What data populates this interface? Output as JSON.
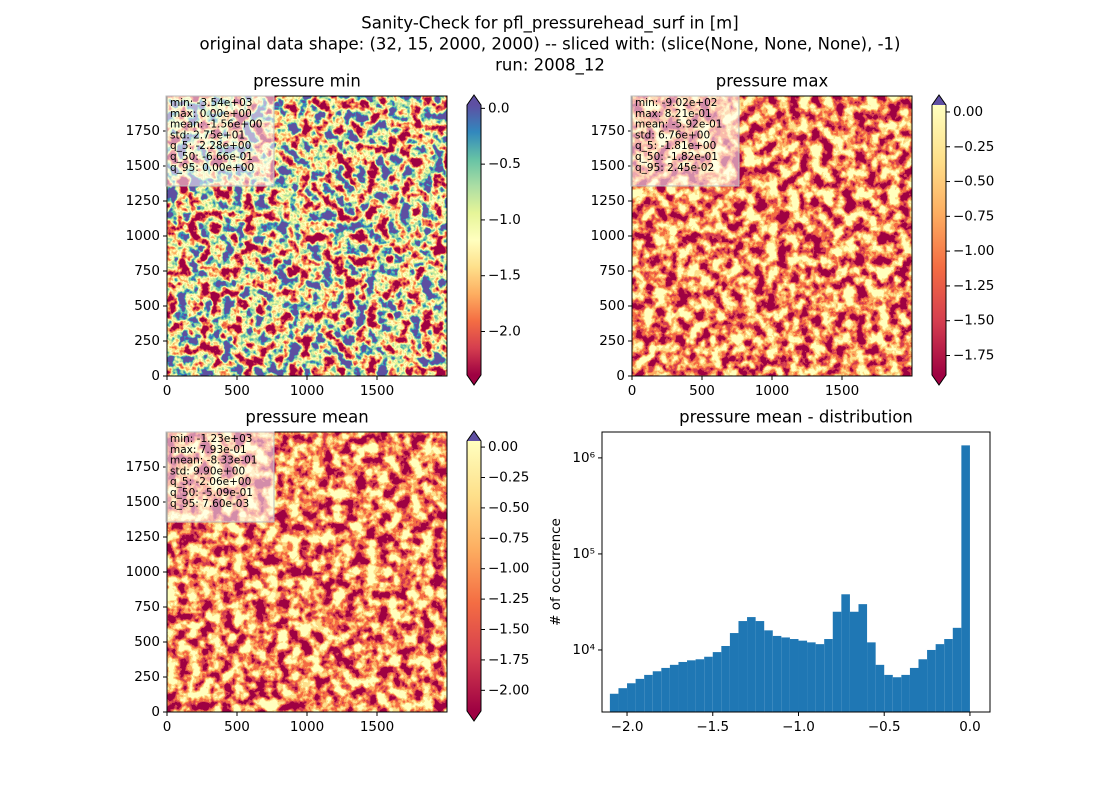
{
  "suptitle": [
    "Sanity-Check for pfl_pressurehead_surf in [m]",
    "original data shape: (32, 15, 2000, 2000) -- sliced with: (slice(None, None, None), -1)",
    "run: 2008_12"
  ],
  "chart_data": [
    {
      "type": "heatmap",
      "title": "pressure min",
      "xlim": [
        0,
        2000
      ],
      "ylim": [
        0,
        2000
      ],
      "xticks": [
        0,
        500,
        1000,
        1500
      ],
      "yticks": [
        0,
        250,
        500,
        750,
        1000,
        1250,
        1500,
        1750
      ],
      "clim": [
        -2.39,
        0.03
      ],
      "cticks": [
        {
          "value": 0,
          "label": "0.0"
        },
        {
          "value": -0.5,
          "label": "−0.5"
        },
        {
          "value": -1,
          "label": "−1.0"
        },
        {
          "value": -1.5,
          "label": "−1.5"
        },
        {
          "value": -2,
          "label": "−2.0"
        }
      ],
      "colormap": [
        "#9e0142",
        "#d53e4f",
        "#f46d43",
        "#fdae61",
        "#fee08b",
        "#ffffbf",
        "#e6f598",
        "#abdda4",
        "#66c2a5",
        "#3288bd",
        "#5e4fa2"
      ],
      "extend_colors": {
        "over": "#5e4fa2",
        "under": "#9e0142"
      },
      "stats": [
        "min: -3.54e+03",
        "max: 0.00e+00",
        "mean: -1.56e+00",
        "std: 2.75e+01",
        "q_5: -2.28e+00",
        "q_50: -6.66e-01",
        "q_95: 0.00e+00"
      ]
    },
    {
      "type": "heatmap",
      "title": "pressure max",
      "xlim": [
        0,
        2000
      ],
      "ylim": [
        0,
        2000
      ],
      "xticks": [
        0,
        500,
        1000,
        1500
      ],
      "yticks": [
        0,
        250,
        500,
        750,
        1000,
        1250,
        1500,
        1750
      ],
      "clim": [
        -1.89,
        0.05
      ],
      "cticks": [
        {
          "value": 0,
          "label": "0.00"
        },
        {
          "value": -0.25,
          "label": "−0.25"
        },
        {
          "value": -0.5,
          "label": "−0.50"
        },
        {
          "value": -0.75,
          "label": "−0.75"
        },
        {
          "value": -1,
          "label": "−1.00"
        },
        {
          "value": -1.25,
          "label": "−1.25"
        },
        {
          "value": -1.5,
          "label": "−1.50"
        },
        {
          "value": -1.75,
          "label": "−1.75"
        }
      ],
      "colormap": [
        "#9e0142",
        "#d53e4f",
        "#f46d43",
        "#fdae61",
        "#fee08b",
        "#ffffbf"
      ],
      "extend_colors": {
        "over": "#5e4fa2",
        "under": "#9e0142"
      },
      "stats": [
        "min: -9.02e+02",
        "max: 8.21e-01",
        "mean: -5.92e-01",
        "std: 6.76e+00",
        "q_5: -1.81e+00",
        "q_50: -1.82e-01",
        "q_95: 2.45e-02"
      ]
    },
    {
      "type": "heatmap",
      "title": "pressure mean",
      "xlim": [
        0,
        2000
      ],
      "ylim": [
        0,
        2000
      ],
      "xticks": [
        0,
        500,
        1000,
        1500
      ],
      "yticks": [
        0,
        250,
        500,
        750,
        1000,
        1250,
        1500,
        1750
      ],
      "clim": [
        -2.17,
        0.05
      ],
      "cticks": [
        {
          "value": 0,
          "label": "0.00"
        },
        {
          "value": -0.25,
          "label": "−0.25"
        },
        {
          "value": -0.5,
          "label": "−0.50"
        },
        {
          "value": -0.75,
          "label": "−0.75"
        },
        {
          "value": -1,
          "label": "−1.00"
        },
        {
          "value": -1.25,
          "label": "−1.25"
        },
        {
          "value": -1.5,
          "label": "−1.50"
        },
        {
          "value": -1.75,
          "label": "−1.75"
        },
        {
          "value": -2,
          "label": "−2.00"
        }
      ],
      "colormap": [
        "#9e0142",
        "#d53e4f",
        "#f46d43",
        "#fdae61",
        "#fee08b",
        "#ffffbf"
      ],
      "extend_colors": {
        "over": "#5e4fa2",
        "under": "#9e0142"
      },
      "stats": [
        "min: -1.23e+03",
        "max: 7.93e-01",
        "mean: -8.33e-01",
        "std: 9.90e+00",
        "q_5: -2.06e+00",
        "q_50: -5.09e-01",
        "q_95: 7.60e-03"
      ]
    },
    {
      "type": "histogram",
      "title": "pressure mean - distribution",
      "y_label": "# of occurrence",
      "color": "#1f77b4",
      "log_y": true,
      "xlim": [
        -2.146,
        0.117
      ],
      "ylim": [
        2260,
        1860000
      ],
      "xticks": [
        {
          "value": -2,
          "label": "−2.0"
        },
        {
          "value": -1.5,
          "label": "−1.5"
        },
        {
          "value": -1,
          "label": "−1.0"
        },
        {
          "value": -0.5,
          "label": "−0.5"
        },
        {
          "value": 0,
          "label": "0.0"
        }
      ],
      "yticks": [
        {
          "value": 10000,
          "label": "10⁴"
        },
        {
          "value": 100000,
          "label": "10⁵"
        },
        {
          "value": 1000000,
          "label": "10⁶"
        }
      ],
      "bins": [
        -2.1,
        -2.05,
        -2.0,
        -1.95,
        -1.9,
        -1.85,
        -1.8,
        -1.75,
        -1.7,
        -1.65,
        -1.6,
        -1.55,
        -1.5,
        -1.45,
        -1.4,
        -1.35,
        -1.3,
        -1.25,
        -1.2,
        -1.15,
        -1.1,
        -1.05,
        -1.0,
        -0.95,
        -0.9,
        -0.85,
        -0.8,
        -0.75,
        -0.7,
        -0.65,
        -0.6,
        -0.55,
        -0.5,
        -0.45,
        -0.4,
        -0.35,
        -0.3,
        -0.25,
        -0.2,
        -0.15,
        -0.1,
        -0.05,
        0.0
      ],
      "counts": [
        3500,
        4000,
        4500,
        5000,
        5500,
        6000,
        6500,
        7000,
        7500,
        7800,
        8000,
        8500,
        9500,
        11000,
        15000,
        20000,
        22000,
        20000,
        16000,
        14000,
        13500,
        13000,
        12500,
        12000,
        11500,
        13000,
        25000,
        38000,
        25000,
        30000,
        12000,
        7000,
        5500,
        5200,
        5500,
        6500,
        8000,
        10000,
        11500,
        13000,
        17000,
        1350000
      ]
    }
  ]
}
